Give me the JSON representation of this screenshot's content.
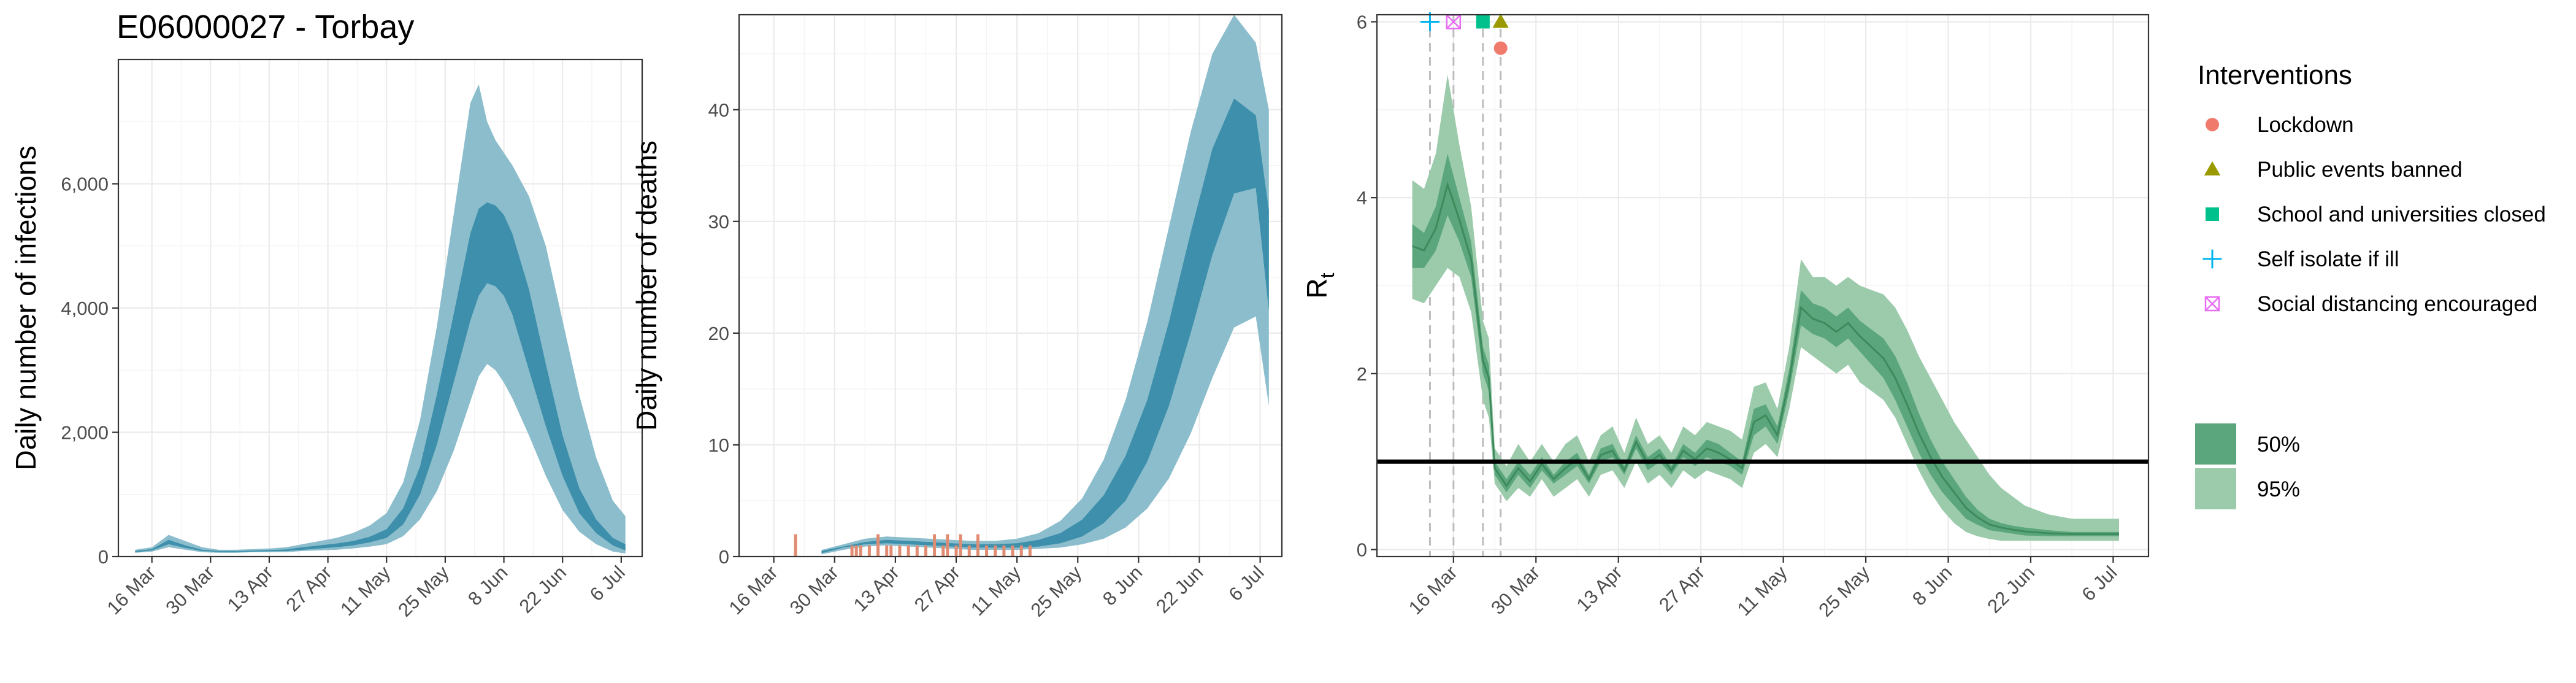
{
  "title": "E06000027 - Torbay",
  "colors": {
    "fit_ci95": "#8bbdcc",
    "fit_ci50": "#3d8fab",
    "observed_deaths": "#e08b72",
    "rt_ci95": "#9bcbab",
    "rt_ci50": "#5ba67c",
    "rt_line": "#3d8a5c",
    "threshold_line": "#000000",
    "grid": "#ebebeb",
    "panel_border": "#333333",
    "intervention_vline": "#bdbdbd"
  },
  "date_labels": [
    "16 Mar",
    "30 Mar",
    "13 Apr",
    "27 Apr",
    "11 May",
    "25 May",
    "8 Jun",
    "22 Jun",
    "6 Jul"
  ],
  "chart_data": [
    {
      "type": "area",
      "name": "infections",
      "ylabel": "Daily number of infections",
      "xlim": [
        "2020-03-08",
        "2020-07-11"
      ],
      "ylim": [
        0,
        8000
      ],
      "x_ticks": [
        "2020-03-16",
        "2020-03-30",
        "2020-04-13",
        "2020-04-27",
        "2020-05-11",
        "2020-05-25",
        "2020-06-08",
        "2020-06-22",
        "2020-07-06"
      ],
      "y_ticks": [
        0,
        2000,
        4000,
        6000
      ],
      "y_tick_labels": [
        "0",
        "2,000",
        "4,000",
        "6,000"
      ],
      "grid": true,
      "series": [
        {
          "x": [
            "2020-03-12",
            "2020-03-16",
            "2020-03-20",
            "2020-03-24",
            "2020-03-28",
            "2020-04-01",
            "2020-04-05",
            "2020-04-09",
            "2020-04-13",
            "2020-04-17",
            "2020-04-21",
            "2020-04-25",
            "2020-04-29",
            "2020-05-03",
            "2020-05-07",
            "2020-05-11",
            "2020-05-15",
            "2020-05-19",
            "2020-05-23",
            "2020-05-27",
            "2020-05-31",
            "2020-06-02",
            "2020-06-04",
            "2020-06-06",
            "2020-06-08",
            "2020-06-10",
            "2020-06-14",
            "2020-06-18",
            "2020-06-22",
            "2020-06-26",
            "2020-06-30",
            "2020-07-04",
            "2020-07-07"
          ],
          "ci95_low": [
            60,
            80,
            150,
            110,
            70,
            60,
            60,
            70,
            70,
            70,
            90,
            100,
            110,
            130,
            160,
            200,
            330,
            600,
            1050,
            1700,
            2500,
            2900,
            3100,
            3000,
            2800,
            2550,
            1950,
            1300,
            750,
            400,
            200,
            80,
            50
          ],
          "ci95_high": [
            110,
            150,
            350,
            250,
            150,
            110,
            110,
            120,
            130,
            150,
            200,
            250,
            300,
            380,
            500,
            700,
            1200,
            2200,
            3700,
            5500,
            7300,
            7600,
            7000,
            6700,
            6500,
            6300,
            5800,
            5000,
            3800,
            2600,
            1600,
            900,
            650
          ],
          "ci50_low": [
            70,
            100,
            200,
            140,
            90,
            75,
            75,
            80,
            85,
            90,
            110,
            130,
            150,
            180,
            230,
            300,
            520,
            1000,
            1800,
            2800,
            3800,
            4200,
            4400,
            4350,
            4200,
            3900,
            3000,
            2100,
            1300,
            700,
            380,
            180,
            100
          ],
          "ci50_high": [
            90,
            120,
            270,
            180,
            110,
            90,
            90,
            95,
            105,
            115,
            150,
            180,
            210,
            250,
            320,
            440,
            780,
            1450,
            2600,
            3900,
            5200,
            5600,
            5700,
            5650,
            5500,
            5200,
            4300,
            3100,
            1950,
            1100,
            600,
            300,
            200
          ]
        }
      ]
    },
    {
      "type": "area",
      "name": "deaths",
      "ylabel": "Daily number of deaths",
      "xlim": [
        "2020-03-08",
        "2020-07-11"
      ],
      "ylim": [
        0,
        48.5
      ],
      "x_ticks": [
        "2020-03-16",
        "2020-03-30",
        "2020-04-13",
        "2020-04-27",
        "2020-05-11",
        "2020-05-25",
        "2020-06-08",
        "2020-06-22",
        "2020-07-06"
      ],
      "y_ticks": [
        0,
        10,
        20,
        30,
        40
      ],
      "y_tick_labels": [
        "0",
        "10",
        "20",
        "30",
        "40"
      ],
      "grid": true,
      "observed": {
        "x": [
          "2020-03-21",
          "2020-04-03",
          "2020-04-04",
          "2020-04-05",
          "2020-04-07",
          "2020-04-09",
          "2020-04-11",
          "2020-04-12",
          "2020-04-14",
          "2020-04-16",
          "2020-04-18",
          "2020-04-20",
          "2020-04-22",
          "2020-04-24",
          "2020-04-25",
          "2020-04-27",
          "2020-04-28",
          "2020-04-30",
          "2020-05-02",
          "2020-05-04",
          "2020-05-06",
          "2020-05-08",
          "2020-05-10",
          "2020-05-12",
          "2020-05-14"
        ],
        "values": [
          2,
          1,
          1,
          1,
          1,
          2,
          1,
          1,
          1,
          1,
          1,
          1,
          2,
          1,
          2,
          1,
          2,
          1,
          2,
          1,
          1,
          1,
          1,
          1,
          1
        ]
      },
      "series": [
        {
          "x": [
            "2020-03-27",
            "2020-04-01",
            "2020-04-06",
            "2020-04-11",
            "2020-04-16",
            "2020-04-21",
            "2020-04-26",
            "2020-05-01",
            "2020-05-06",
            "2020-05-11",
            "2020-05-16",
            "2020-05-21",
            "2020-05-26",
            "2020-05-31",
            "2020-06-05",
            "2020-06-10",
            "2020-06-15",
            "2020-06-20",
            "2020-06-25",
            "2020-06-30",
            "2020-07-05",
            "2020-07-08"
          ],
          "ci95_low": [
            0.2,
            0.6,
            0.9,
            1.0,
            0.9,
            0.8,
            0.7,
            0.6,
            0.6,
            0.6,
            0.7,
            0.8,
            1.1,
            1.6,
            2.6,
            4.3,
            7.0,
            11.0,
            16.0,
            20.5,
            21.5,
            13.5
          ],
          "ci95_high": [
            0.6,
            1.1,
            1.6,
            1.8,
            1.7,
            1.6,
            1.5,
            1.4,
            1.4,
            1.6,
            2.1,
            3.2,
            5.2,
            8.7,
            14.0,
            21.0,
            29.5,
            38.0,
            45.0,
            48.5,
            46.0,
            40.0
          ],
          "ci50_low": [
            0.3,
            0.8,
            1.1,
            1.2,
            1.1,
            1.0,
            0.9,
            0.8,
            0.8,
            0.8,
            0.9,
            1.2,
            1.8,
            3.0,
            5.0,
            8.5,
            13.5,
            20.0,
            27.0,
            32.5,
            33.0,
            22.0
          ],
          "ci50_high": [
            0.5,
            0.9,
            1.3,
            1.5,
            1.4,
            1.3,
            1.2,
            1.1,
            1.1,
            1.2,
            1.5,
            2.1,
            3.3,
            5.5,
            9.0,
            14.0,
            21.0,
            29.0,
            36.5,
            41.0,
            39.5,
            31.0
          ]
        }
      ]
    },
    {
      "type": "area",
      "name": "rt",
      "ylabel": "R",
      "ylabel_subscript": "t",
      "xlim": [
        "2020-03-03",
        "2020-07-12"
      ],
      "ylim": [
        -0.08,
        6.08
      ],
      "x_ticks": [
        "2020-03-16",
        "2020-03-30",
        "2020-04-13",
        "2020-04-27",
        "2020-05-11",
        "2020-05-25",
        "2020-06-08",
        "2020-06-22",
        "2020-07-06"
      ],
      "y_ticks": [
        0,
        2,
        4,
        6
      ],
      "y_tick_labels": [
        "0",
        "2",
        "4",
        "6"
      ],
      "grid": true,
      "threshold": 1,
      "series": [
        {
          "x": [
            "2020-03-09",
            "2020-03-11",
            "2020-03-13",
            "2020-03-15",
            "2020-03-17",
            "2020-03-19",
            "2020-03-21",
            "2020-03-22",
            "2020-03-23",
            "2020-03-25",
            "2020-03-27",
            "2020-03-29",
            "2020-03-31",
            "2020-04-02",
            "2020-04-04",
            "2020-04-06",
            "2020-04-08",
            "2020-04-10",
            "2020-04-12",
            "2020-04-14",
            "2020-04-16",
            "2020-04-18",
            "2020-04-20",
            "2020-04-22",
            "2020-04-24",
            "2020-04-26",
            "2020-04-28",
            "2020-04-30",
            "2020-05-02",
            "2020-05-04",
            "2020-05-06",
            "2020-05-08",
            "2020-05-10",
            "2020-05-12",
            "2020-05-14",
            "2020-05-16",
            "2020-05-18",
            "2020-05-20",
            "2020-05-22",
            "2020-05-24",
            "2020-05-26",
            "2020-05-28",
            "2020-05-30",
            "2020-06-01",
            "2020-06-03",
            "2020-06-05",
            "2020-06-07",
            "2020-06-09",
            "2020-06-11",
            "2020-06-13",
            "2020-06-15",
            "2020-06-17",
            "2020-06-19",
            "2020-06-21",
            "2020-06-25",
            "2020-06-29",
            "2020-07-03",
            "2020-07-07"
          ],
          "ci95_low": [
            2.85,
            2.8,
            3.0,
            3.2,
            3.1,
            2.7,
            1.7,
            1.5,
            0.75,
            0.55,
            0.7,
            0.6,
            0.8,
            0.6,
            0.7,
            0.8,
            0.6,
            0.85,
            0.9,
            0.7,
            1.0,
            0.75,
            0.85,
            0.7,
            0.9,
            0.8,
            0.9,
            0.85,
            0.8,
            0.7,
            1.1,
            1.2,
            1.05,
            1.6,
            2.3,
            2.2,
            2.1,
            2.0,
            2.1,
            1.9,
            1.8,
            1.7,
            1.5,
            1.2,
            0.9,
            0.65,
            0.45,
            0.3,
            0.2,
            0.15,
            0.12,
            0.1,
            0.1,
            0.1,
            0.1,
            0.1,
            0.1,
            0.1
          ],
          "ci95_high": [
            4.2,
            4.1,
            4.5,
            5.4,
            4.6,
            3.9,
            2.6,
            2.4,
            1.15,
            0.95,
            1.2,
            1.0,
            1.2,
            1.0,
            1.2,
            1.3,
            1.0,
            1.3,
            1.4,
            1.1,
            1.5,
            1.2,
            1.3,
            1.1,
            1.4,
            1.3,
            1.45,
            1.4,
            1.35,
            1.25,
            1.85,
            1.9,
            1.6,
            2.3,
            3.3,
            3.1,
            3.1,
            3.0,
            3.1,
            3.0,
            2.95,
            2.9,
            2.75,
            2.5,
            2.2,
            1.95,
            1.7,
            1.45,
            1.25,
            1.05,
            0.85,
            0.7,
            0.6,
            0.5,
            0.4,
            0.35,
            0.35,
            0.35
          ],
          "ci50_low": [
            3.2,
            3.2,
            3.4,
            3.8,
            3.5,
            3.1,
            2.0,
            1.8,
            0.85,
            0.65,
            0.85,
            0.7,
            0.9,
            0.75,
            0.85,
            0.95,
            0.75,
            1.0,
            1.05,
            0.85,
            1.15,
            0.9,
            1.0,
            0.85,
            1.05,
            0.95,
            1.05,
            1.0,
            0.95,
            0.85,
            1.3,
            1.4,
            1.2,
            1.8,
            2.55,
            2.45,
            2.4,
            2.3,
            2.4,
            2.25,
            2.1,
            1.95,
            1.7,
            1.4,
            1.1,
            0.85,
            0.65,
            0.5,
            0.35,
            0.28,
            0.22,
            0.2,
            0.18,
            0.16,
            0.15,
            0.15,
            0.15,
            0.15
          ],
          "ci50_high": [
            3.7,
            3.6,
            3.9,
            4.5,
            4.0,
            3.5,
            2.3,
            2.1,
            1.0,
            0.8,
            1.0,
            0.85,
            1.05,
            0.85,
            1.0,
            1.1,
            0.85,
            1.15,
            1.2,
            0.95,
            1.3,
            1.05,
            1.15,
            0.95,
            1.2,
            1.1,
            1.25,
            1.2,
            1.1,
            1.0,
            1.6,
            1.65,
            1.4,
            2.05,
            2.95,
            2.8,
            2.75,
            2.65,
            2.75,
            2.6,
            2.5,
            2.4,
            2.2,
            1.9,
            1.55,
            1.25,
            1.0,
            0.8,
            0.6,
            0.45,
            0.35,
            0.3,
            0.27,
            0.25,
            0.22,
            0.2,
            0.2,
            0.2
          ]
        }
      ],
      "interventions": [
        {
          "name": "Self isolate if ill",
          "date": "2020-03-12",
          "y": 6.0,
          "shape": "plus",
          "color": "#00b4ef"
        },
        {
          "name": "Social distancing encouraged",
          "date": "2020-03-16",
          "y": 6.0,
          "shape": "boxx",
          "color": "#e76bf3"
        },
        {
          "name": "School and universities closed",
          "date": "2020-03-21",
          "y": 6.0,
          "shape": "square",
          "color": "#00c08b"
        },
        {
          "name": "Public events banned",
          "date": "2020-03-24",
          "y": 6.0,
          "shape": "triangle",
          "color": "#9a9a00"
        },
        {
          "name": "Lockdown",
          "date": "2020-03-24",
          "y": 5.7,
          "shape": "circle",
          "color": "#f07a6c"
        }
      ]
    }
  ],
  "legend": {
    "interventions_title": "Interventions",
    "interventions": [
      {
        "label": "Lockdown",
        "shape": "circle",
        "color": "#f07a6c"
      },
      {
        "label": "Public events banned",
        "shape": "triangle",
        "color": "#9a9a00"
      },
      {
        "label": "School and universities closed",
        "shape": "square",
        "color": "#00c08b"
      },
      {
        "label": "Self isolate if ill",
        "shape": "plus",
        "color": "#00b4ef"
      },
      {
        "label": "Social distancing encouraged",
        "shape": "boxx",
        "color": "#e76bf3"
      }
    ],
    "ci": [
      {
        "label": "50%",
        "color": "#5ba67c"
      },
      {
        "label": "95%",
        "color": "#9bcbab"
      }
    ]
  }
}
